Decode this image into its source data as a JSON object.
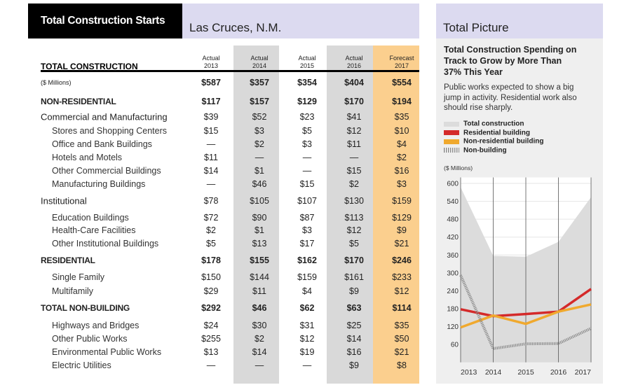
{
  "header": {
    "title": "Total Construction Starts",
    "location": "Las Cruces, N.M."
  },
  "table": {
    "heading": "TOTAL CONSTRUCTION",
    "columns": [
      {
        "status": "Actual",
        "year": "2013"
      },
      {
        "status": "Actual",
        "year": "2014"
      },
      {
        "status": "Actual",
        "year": "2015"
      },
      {
        "status": "Actual",
        "year": "2016"
      },
      {
        "status": "Forecast",
        "year": "2017"
      }
    ],
    "units": "($ Millions)",
    "totals": [
      "$587",
      "$357",
      "$354",
      "$404",
      "$554"
    ],
    "sections": [
      {
        "label": "NON-RESIDENTIAL",
        "values": [
          "$117",
          "$157",
          "$129",
          "$170",
          "$194"
        ],
        "groups": [
          {
            "label": "Commercial and Manufacturing",
            "values": [
              "$39",
              "$52",
              "$23",
              "$41",
              "$35"
            ],
            "items": [
              {
                "label": "Stores and Shopping Centers",
                "values": [
                  "$15",
                  "$3",
                  "$5",
                  "$12",
                  "$10"
                ]
              },
              {
                "label": "Office and Bank Buildings",
                "values": [
                  "—",
                  "$2",
                  "$3",
                  "$11",
                  "$4"
                ]
              },
              {
                "label": "Hotels and Motels",
                "values": [
                  "$11",
                  "—",
                  "—",
                  "—",
                  "$2"
                ]
              },
              {
                "label": "Other Commercial Buildings",
                "values": [
                  "$14",
                  "$1",
                  "—",
                  "$15",
                  "$16"
                ]
              },
              {
                "label": "Manufacturing Buildings",
                "values": [
                  "—",
                  "$46",
                  "$15",
                  "$2",
                  "$3"
                ]
              }
            ]
          },
          {
            "label": "Institutional",
            "values": [
              "$78",
              "$105",
              "$107",
              "$130",
              "$159"
            ],
            "items": [
              {
                "label": "Education Buildings",
                "values": [
                  "$72",
                  "$90",
                  "$87",
                  "$113",
                  "$129"
                ]
              },
              {
                "label": "Health-Care Facilities",
                "values": [
                  "$2",
                  "$1",
                  "$3",
                  "$12",
                  "$9"
                ]
              },
              {
                "label": "Other Institutional Buildings",
                "values": [
                  "$5",
                  "$13",
                  "$17",
                  "$5",
                  "$21"
                ]
              }
            ]
          }
        ]
      },
      {
        "label": "RESIDENTIAL",
        "values": [
          "$178",
          "$155",
          "$162",
          "$170",
          "$246"
        ],
        "items": [
          {
            "label": "Single Family",
            "values": [
              "$150",
              "$144",
              "$159",
              "$161",
              "$233"
            ]
          },
          {
            "label": "Multifamily",
            "values": [
              "$29",
              "$11",
              "$4",
              "$9",
              "$12"
            ]
          }
        ]
      },
      {
        "label": "TOTAL NON-BUILDING",
        "values": [
          "$292",
          "$46",
          "$62",
          "$63",
          "$114"
        ],
        "items": [
          {
            "label": "Highways and Bridges",
            "values": [
              "$24",
              "$30",
              "$31",
              "$25",
              "$35"
            ]
          },
          {
            "label": "Other Public Works",
            "values": [
              "$255",
              "$2",
              "$12",
              "$14",
              "$50"
            ]
          },
          {
            "label": "Environmental Public Works",
            "values": [
              "$13",
              "$14",
              "$19",
              "$16",
              "$21"
            ]
          },
          {
            "label": "Electric Utilities",
            "values": [
              "—",
              "—",
              "—",
              "$9",
              "$8"
            ]
          }
        ]
      }
    ]
  },
  "sidebar": {
    "title": "Total Picture",
    "headline": "Total Construction Spending on Track to Grow by More Than 37% This Year",
    "description": "Public works expected to show a big jump in activity. Residential work also should rise sharply."
  },
  "chart_data": {
    "type": "line",
    "ylabel": "($ Millions)",
    "x": [
      2013,
      2014,
      2015,
      2016,
      2017
    ],
    "xlim": [
      2013,
      2017
    ],
    "xticks": [
      2013,
      2014,
      2015,
      2016,
      2017
    ],
    "ylim": [
      0,
      620
    ],
    "yticks": [
      60,
      120,
      180,
      240,
      300,
      360,
      420,
      480,
      540,
      600
    ],
    "grid": true,
    "series": [
      {
        "name": "Total construction",
        "color": "#dcdcdc",
        "style": "area",
        "values": [
          587,
          357,
          354,
          404,
          554
        ]
      },
      {
        "name": "Residential building",
        "color": "#d42a2a",
        "style": "line",
        "values": [
          178,
          155,
          162,
          170,
          246
        ]
      },
      {
        "name": "Non-residential building",
        "color": "#f0a92e",
        "style": "line",
        "values": [
          117,
          157,
          129,
          170,
          194
        ]
      },
      {
        "name": "Non-building",
        "color": "#8a8a8a",
        "style": "hatched",
        "values": [
          292,
          46,
          62,
          63,
          114
        ]
      }
    ]
  }
}
